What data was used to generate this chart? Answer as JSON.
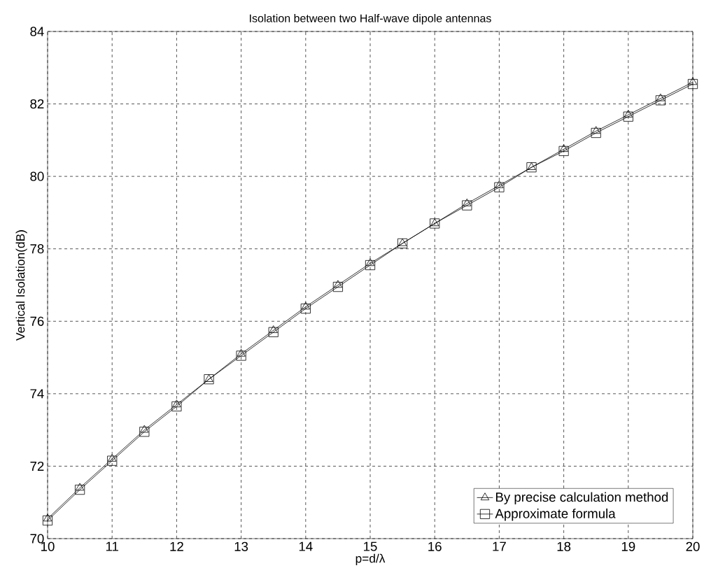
{
  "chart_data": {
    "type": "line",
    "title": "Isolation between two Half-wave dipole antennas",
    "xlabel": "p=d/λ",
    "ylabel": "Vertical Isolation(dB)",
    "x": [
      10,
      10.5,
      11,
      11.5,
      12,
      12.5,
      13,
      13.5,
      14,
      14.5,
      15,
      15.5,
      16,
      16.5,
      17,
      17.5,
      18,
      18.5,
      19,
      19.5,
      20
    ],
    "series": [
      {
        "name": "By precise calculation method",
        "color": "#000000",
        "marker": "triangle",
        "values": [
          70.55,
          71.4,
          72.2,
          73.0,
          73.7,
          74.4,
          75.1,
          75.75,
          76.4,
          77.0,
          77.6,
          78.15,
          78.7,
          79.25,
          79.75,
          80.25,
          80.75,
          81.25,
          81.7,
          82.15,
          82.6
        ]
      },
      {
        "name": "Approximate formula",
        "color": "#000000",
        "marker": "square",
        "values": [
          70.5,
          71.35,
          72.15,
          72.95,
          73.65,
          74.4,
          75.05,
          75.7,
          76.35,
          76.95,
          77.55,
          78.15,
          78.7,
          79.2,
          79.7,
          80.25,
          80.7,
          81.2,
          81.65,
          82.1,
          82.55
        ]
      }
    ],
    "xlim": [
      10,
      20
    ],
    "ylim": [
      70,
      84
    ],
    "xticks": [
      10,
      11,
      12,
      13,
      14,
      15,
      16,
      17,
      18,
      19,
      20
    ],
    "yticks": [
      70,
      72,
      74,
      76,
      78,
      80,
      82,
      84
    ],
    "grid": true,
    "legend": "bottom right",
    "line_style": "solid"
  }
}
